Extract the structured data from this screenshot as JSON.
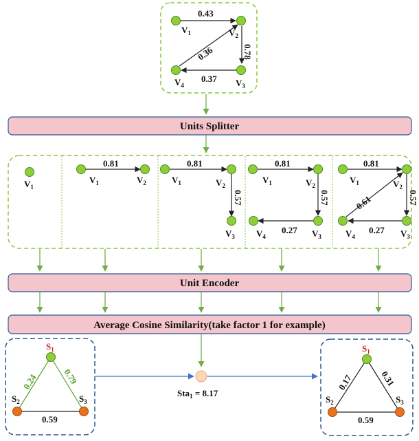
{
  "colors": {
    "node_green": "#8fce3a",
    "node_green_stroke": "#4b8a1c",
    "node_orange": "#e8731f",
    "node_orange_stroke": "#9a4a12",
    "green_dashed": "#8cc63f",
    "blue_dashed": "#2f5597",
    "bar_fill": "#f4c6cc",
    "bar_stroke": "#2f5597",
    "arrow_green": "#70ad47",
    "arrow_blue": "#4472c4",
    "s1_red": "#e02020",
    "green_weight": "#5aa02c"
  },
  "top_graph": {
    "nodes": [
      "V",
      "V",
      "V",
      "V"
    ],
    "node_subs": [
      "1",
      "2",
      "3",
      "4"
    ],
    "weights": [
      "0.43",
      "0.78",
      "0.37",
      "0.36"
    ]
  },
  "bars": {
    "units_splitter": "Units Splitter",
    "unit_encoder": "Unit Encoder",
    "average_cosine": "Average Cosine Similarity(take factor 1 for example)"
  },
  "units": {
    "u1": {
      "nodes": [
        "V"
      ],
      "subs": [
        "1"
      ]
    },
    "u2": {
      "nodes": [
        "V",
        "V"
      ],
      "subs": [
        "1",
        "2"
      ],
      "weights": [
        "0.81"
      ]
    },
    "u3": {
      "nodes": [
        "V",
        "V",
        "V"
      ],
      "subs": [
        "1",
        "2",
        "3"
      ],
      "weights": [
        "0.81",
        "0.57"
      ]
    },
    "u4": {
      "nodes": [
        "V",
        "V",
        "V",
        "V"
      ],
      "subs": [
        "1",
        "2",
        "3",
        "4"
      ],
      "weights": [
        "0.81",
        "0.57",
        "0.27"
      ]
    },
    "u5": {
      "nodes": [
        "V",
        "V",
        "V",
        "V"
      ],
      "subs": [
        "1",
        "2",
        "3",
        "4"
      ],
      "weights": [
        "0.81",
        "0.57",
        "0.27",
        "0.61"
      ]
    }
  },
  "left_triangle": {
    "nodes": [
      "S",
      "S",
      "S"
    ],
    "subs": [
      "1",
      "2",
      "3"
    ],
    "weights": [
      "0.24",
      "0.79",
      "0.59"
    ]
  },
  "sta": {
    "label": "Sta",
    "sub": "1",
    "value": " = 8.17"
  },
  "right_triangle": {
    "nodes": [
      "S",
      "S",
      "S"
    ],
    "subs": [
      "1",
      "2",
      "3"
    ],
    "weights": [
      "0.17",
      "0.31",
      "0.59"
    ]
  }
}
